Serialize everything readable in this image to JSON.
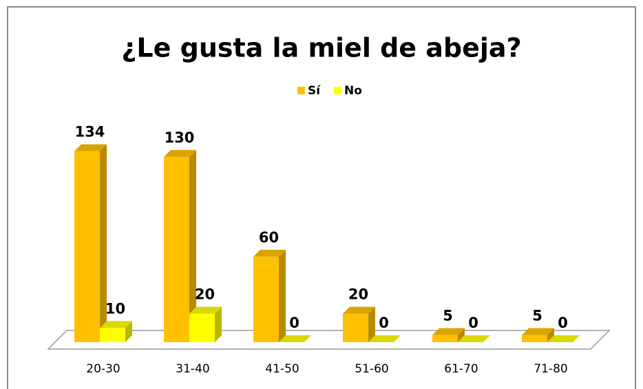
{
  "chart_data": {
    "type": "bar3d",
    "title": "¿Le gusta la miel de abeja?",
    "categories": [
      "20-30",
      "31-40",
      "41-50",
      "51-60",
      "61-70",
      "71-80"
    ],
    "series": [
      {
        "name": "Sí",
        "color": "#FFC000",
        "values": [
          134,
          130,
          60,
          20,
          5,
          5
        ]
      },
      {
        "name": "No",
        "color": "#FFFF00",
        "values": [
          10,
          20,
          0,
          0,
          0,
          0
        ]
      }
    ],
    "legend": "top"
  }
}
